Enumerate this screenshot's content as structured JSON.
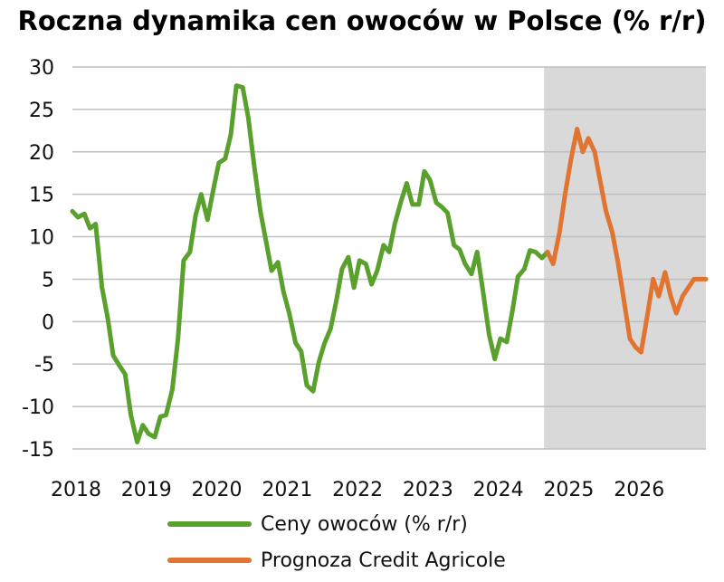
{
  "chart_data": {
    "type": "line",
    "title": "Roczna dynamika cen owoców w Polsce (% r/r)",
    "xlabel": "",
    "ylabel": "",
    "ylim": [
      -15,
      30
    ],
    "y_ticks": [
      30,
      25,
      20,
      15,
      10,
      5,
      0,
      -5,
      -10,
      -15
    ],
    "y_tick_labels": [
      "30",
      "25",
      "20",
      "15",
      "10",
      "5",
      "0",
      "-5",
      "-10",
      "-15"
    ],
    "x_tick_labels": [
      "2018",
      "2019",
      "2020",
      "2021",
      "2022",
      "2023",
      "2024",
      "2025",
      "2026"
    ],
    "x_tick_values": [
      2018,
      2019,
      2020,
      2021,
      2022,
      2023,
      2024,
      2025,
      2026
    ],
    "xlim": [
      2018.0,
      2027.0
    ],
    "grid": true,
    "forecast_region": {
      "x_start": 2024.7,
      "x_end": 2027.0,
      "color": "#d9d9d9"
    },
    "legend_position": "bottom",
    "series": [
      {
        "name": "Ceny owoców (% r/r)",
        "color": "#5aa02c",
        "x": [
          2018.0,
          2018.08,
          2018.17,
          2018.25,
          2018.33,
          2018.42,
          2018.5,
          2018.58,
          2018.67,
          2018.75,
          2018.83,
          2018.92,
          2019.0,
          2019.08,
          2019.17,
          2019.25,
          2019.33,
          2019.42,
          2019.5,
          2019.58,
          2019.67,
          2019.75,
          2019.83,
          2019.92,
          2020.0,
          2020.08,
          2020.17,
          2020.25,
          2020.33,
          2020.42,
          2020.5,
          2020.58,
          2020.67,
          2020.75,
          2020.83,
          2020.92,
          2021.0,
          2021.08,
          2021.17,
          2021.25,
          2021.33,
          2021.42,
          2021.5,
          2021.58,
          2021.67,
          2021.75,
          2021.83,
          2021.92,
          2022.0,
          2022.08,
          2022.17,
          2022.25,
          2022.33,
          2022.42,
          2022.5,
          2022.58,
          2022.67,
          2022.75,
          2022.83,
          2022.92,
          2023.0,
          2023.08,
          2023.17,
          2023.25,
          2023.33,
          2023.42,
          2023.5,
          2023.58,
          2023.67,
          2023.75,
          2023.83,
          2023.92,
          2024.0,
          2024.08,
          2024.17,
          2024.25,
          2024.33,
          2024.42,
          2024.5,
          2024.58,
          2024.67,
          2024.75
        ],
        "y": [
          13.0,
          12.3,
          12.7,
          11.0,
          11.5,
          4.0,
          0.5,
          -4.0,
          -5.2,
          -6.2,
          -11.0,
          -14.2,
          -12.2,
          -13.2,
          -13.6,
          -11.2,
          -11.0,
          -8.0,
          -2.0,
          7.2,
          8.2,
          12.5,
          15.0,
          12.0,
          15.5,
          18.7,
          19.2,
          22.0,
          27.8,
          27.6,
          24.0,
          18.5,
          13.0,
          9.5,
          6.0,
          7.0,
          3.5,
          1.0,
          -2.5,
          -3.5,
          -7.5,
          -8.2,
          -4.8,
          -2.6,
          -0.8,
          2.5,
          6.2,
          7.6,
          4.0,
          7.2,
          6.8,
          4.4,
          6.0,
          9.0,
          8.2,
          11.5,
          14.2,
          16.3,
          13.8,
          13.8,
          17.7,
          16.7,
          14.0,
          13.5,
          12.8,
          9.0,
          8.5,
          6.8,
          5.6,
          8.2,
          3.8,
          -1.5,
          -4.4,
          -2.0,
          -2.4,
          1.2,
          5.3,
          6.2,
          8.4,
          8.2,
          7.5,
          8.2
        ]
      },
      {
        "name": "Prognoza Credit Agricole",
        "color": "#e07430",
        "x": [
          2024.75,
          2024.83,
          2024.92,
          2025.0,
          2025.08,
          2025.17,
          2025.25,
          2025.33,
          2025.42,
          2025.5,
          2025.58,
          2025.67,
          2025.75,
          2025.83,
          2025.92,
          2026.0,
          2026.08,
          2026.17,
          2026.25,
          2026.33,
          2026.42,
          2026.5,
          2026.58,
          2026.67,
          2026.75,
          2026.83,
          2026.92,
          2027.0
        ],
        "y": [
          8.2,
          6.8,
          10.5,
          15.0,
          19.0,
          22.7,
          20.0,
          21.6,
          20.0,
          16.5,
          13.0,
          10.5,
          7.0,
          2.8,
          -2.0,
          -3.0,
          -3.6,
          0.8,
          5.0,
          3.0,
          5.8,
          3.0,
          1.0,
          3.0,
          4.0,
          5.0,
          5.0,
          5.0
        ]
      }
    ]
  }
}
